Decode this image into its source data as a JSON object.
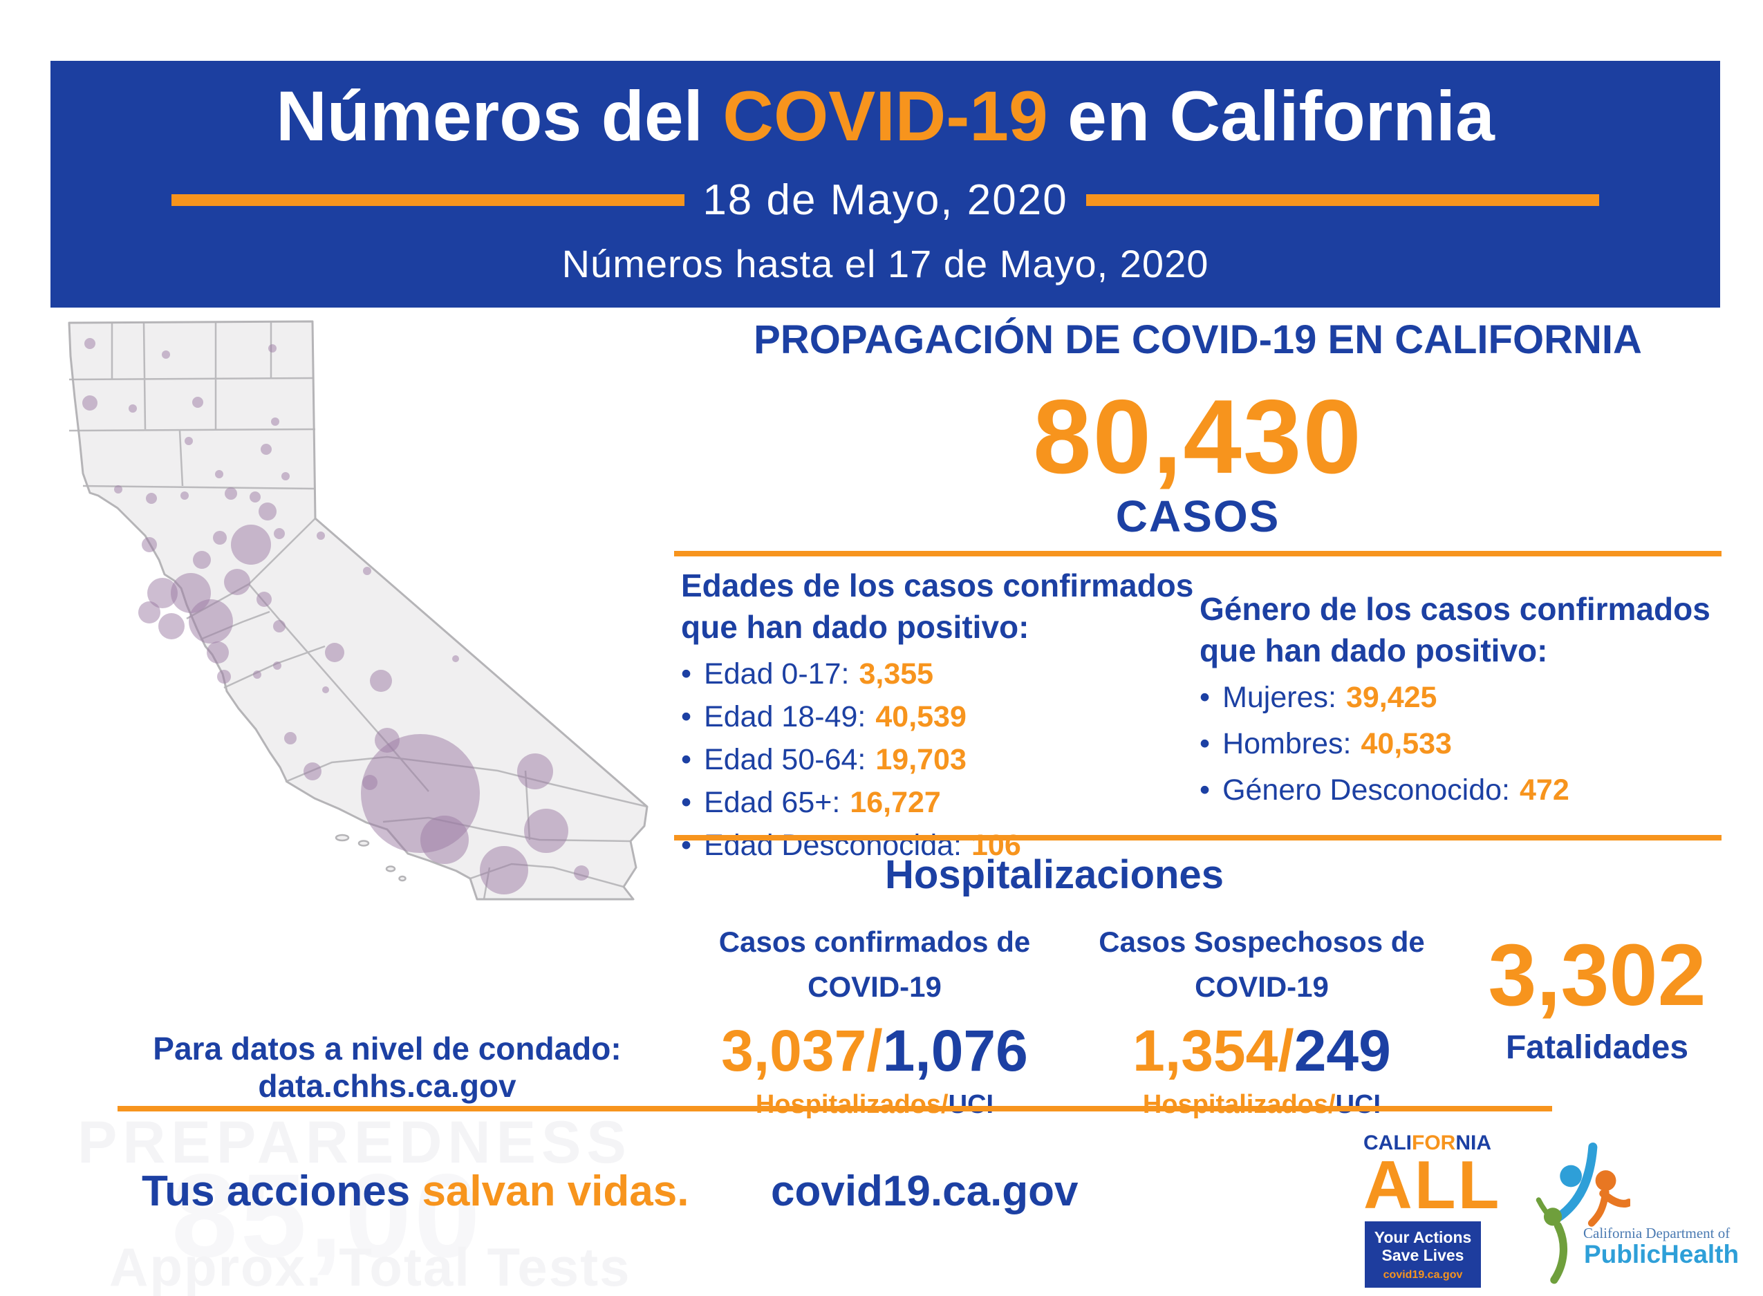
{
  "colors": {
    "blue": "#1c40a3",
    "orange": "#f7941d",
    "banner_blue": "#1c3fa0",
    "bubble_purple": "#9c7ca4",
    "map_fill": "#f0eff0",
    "map_stroke": "#b5b4b7",
    "cdph_light_blue": "#2e9fd8",
    "cdph_serif_blue": "#4a7ab2",
    "cdph_green": "#6f9f3c",
    "cdph_orange": "#e87722"
  },
  "header": {
    "title_pre": "Números del ",
    "title_highlight": "COVID-19",
    "title_post": " en California",
    "date": "18 de Mayo, 2020",
    "subtitle": "Números hasta el 17 de Mayo, 2020"
  },
  "spread": {
    "title": "PROPAGACIÓN DE COVID-19 EN CALIFORNIA",
    "total": "80,430",
    "total_label": "CASOS"
  },
  "ages": {
    "title_line1": "Edades de los casos confirmados",
    "title_line2": "que han dado positivo:",
    "items": [
      {
        "label": "Edad 0-17:",
        "value": "3,355"
      },
      {
        "label": "Edad 18-49:",
        "value": "40,539"
      },
      {
        "label": "Edad 50-64:",
        "value": "19,703"
      },
      {
        "label": "Edad 65+:",
        "value": "16,727"
      },
      {
        "label": "Edad Desconocida:",
        "value": "106"
      }
    ]
  },
  "gender": {
    "title_line1": "Género de los casos confirmados",
    "title_line2": "que han dado positivo:",
    "items": [
      {
        "label": "Mujeres:",
        "value": "39,425"
      },
      {
        "label": "Hombres:",
        "value": "40,533"
      },
      {
        "label": "Género Desconocido:",
        "value": "472"
      }
    ]
  },
  "hospitalizations": {
    "title": "Hospitalizaciones",
    "confirmed": {
      "label_line1": "Casos confirmados de",
      "label_line2": "COVID-19",
      "value_hospitalized": "3,037/",
      "value_icu": "1,076",
      "sub_hospitalized": "Hospitalizados/",
      "sub_icu": "UCI"
    },
    "suspected": {
      "label_line1": "Casos Sospechosos de",
      "label_line2": "COVID-19",
      "value_hospitalized": "1,354/",
      "value_icu": "249",
      "sub_hospitalized": "Hospitalizados/",
      "sub_icu": "UCI"
    },
    "fatalities": {
      "value": "3,302",
      "label": "Fatalidades"
    }
  },
  "map": {
    "note_line1": "Para datos a nivel de condado:",
    "note_line2": "data.chhs.ca.gov",
    "bubbles": [
      [
        70,
        42,
        8
      ],
      [
        180,
        58,
        6
      ],
      [
        334,
        49,
        6
      ],
      [
        70,
        128,
        11
      ],
      [
        132,
        136,
        6
      ],
      [
        226,
        127,
        8
      ],
      [
        338,
        155,
        6
      ],
      [
        213,
        183,
        6
      ],
      [
        325,
        195,
        8
      ],
      [
        257,
        231,
        6
      ],
      [
        353,
        234,
        6
      ],
      [
        111,
        253,
        6
      ],
      [
        159,
        266,
        8
      ],
      [
        207,
        262,
        6
      ],
      [
        274,
        259,
        9
      ],
      [
        309,
        264,
        8
      ],
      [
        327,
        285,
        13
      ],
      [
        303,
        333,
        29
      ],
      [
        258,
        323,
        10
      ],
      [
        344,
        317,
        8
      ],
      [
        404,
        320,
        6
      ],
      [
        471,
        371,
        6
      ],
      [
        283,
        387,
        19
      ],
      [
        232,
        355,
        13
      ],
      [
        156,
        333,
        11
      ],
      [
        216,
        403,
        29
      ],
      [
        175,
        403,
        22
      ],
      [
        156,
        431,
        16
      ],
      [
        188,
        451,
        19
      ],
      [
        245,
        444,
        32
      ],
      [
        255,
        489,
        16
      ],
      [
        322,
        412,
        11
      ],
      [
        344,
        451,
        9
      ],
      [
        424,
        489,
        14
      ],
      [
        341,
        508,
        6
      ],
      [
        264,
        524,
        10
      ],
      [
        312,
        521,
        6
      ],
      [
        491,
        530,
        16
      ],
      [
        411,
        543,
        5
      ],
      [
        599,
        498,
        5
      ],
      [
        360,
        613,
        9
      ],
      [
        500,
        616,
        18
      ],
      [
        392,
        661,
        13
      ],
      [
        475,
        677,
        11
      ],
      [
        548,
        693,
        86
      ],
      [
        583,
        760,
        35
      ],
      [
        714,
        661,
        26
      ],
      [
        730,
        747,
        32
      ],
      [
        669,
        804,
        35
      ],
      [
        781,
        808,
        11
      ]
    ]
  },
  "footer": {
    "message_blue": "Tus acciones ",
    "message_orange": "salvan vidas.",
    "site": "covid19.ca.gov"
  },
  "watermark": {
    "line1": "PREPAREDNESS",
    "line2": "85,00",
    "line3": "Approx. Total Tests"
  },
  "logos": {
    "california_all": {
      "part1": "CALI",
      "part2": "FOR",
      "part3": "NIA",
      "all": "ALL",
      "box_line1": "Your Actions",
      "box_line2": "Save Lives",
      "box_site": "covid19.ca.gov"
    },
    "cdph": {
      "dept": "California Department of",
      "name": "PublicHealth"
    }
  },
  "chart_data": {
    "type": "bubble-map",
    "title": "Propagación de COVID-19 en California (burbujas por condado, tamaño ∝ casos)",
    "values_labeled": false,
    "totals": {
      "total_cases": 80430,
      "ages": {
        "0-17": 3355,
        "18-49": 40539,
        "50-64": 19703,
        "65+": 16727,
        "desconocida": 106
      },
      "gender": {
        "mujeres": 39425,
        "hombres": 40533,
        "desconocido": 472
      },
      "hospitalized_confirmed": 3037,
      "icu_confirmed": 1076,
      "hospitalized_suspected": 1354,
      "icu_suspected": 249,
      "fatalities": 3302
    }
  }
}
